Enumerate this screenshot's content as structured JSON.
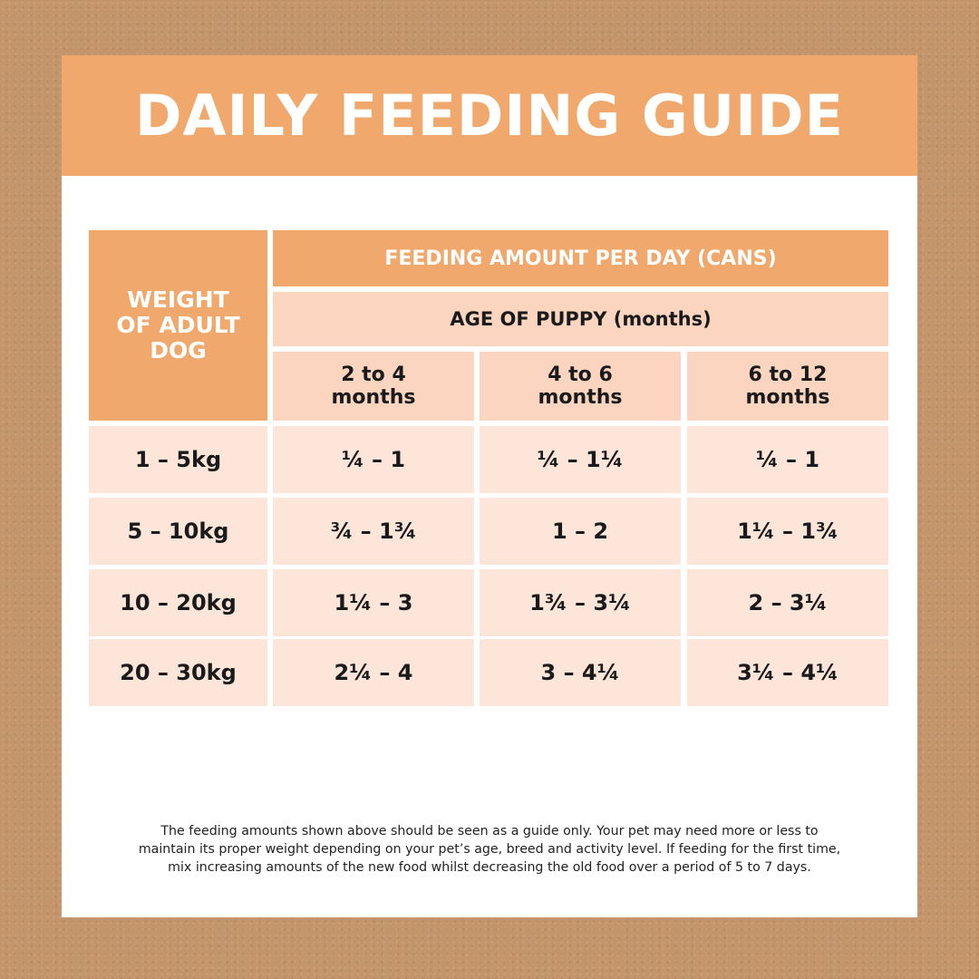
{
  "title": "DAILY FEEDING GUIDE",
  "table": {
    "weight_header": [
      "WEIGHT",
      "OF ADULT",
      "DOG"
    ],
    "feeding_header": "FEEDING AMOUNT PER DAY (CANS)",
    "age_header": "AGE OF PUPPY (months)",
    "age_columns": [
      [
        "2 to 4",
        "months"
      ],
      [
        "4 to 6",
        "months"
      ],
      [
        "6 to 12",
        "months"
      ]
    ],
    "rows": [
      {
        "weight": "1 – 5kg",
        "values": [
          "¼ – 1",
          "¼ – 1¼",
          "¼ – 1"
        ]
      },
      {
        "weight": "5 – 10kg",
        "values": [
          "¾ – 1¾",
          "1 – 2",
          "1¼ – 1¾"
        ]
      },
      {
        "weight": "10 – 20kg",
        "values": [
          "1¼ – 3",
          "1¾ – 3¼",
          "2 – 3¼"
        ]
      },
      {
        "weight": "20 – 30kg",
        "values": [
          "2¼ – 4",
          "3 – 4¼",
          "3¼ – 4¼"
        ]
      }
    ]
  },
  "footer": {
    "lines": [
      "The feeding amounts shown above should be seen as a guide only. Your pet may need more or less to",
      "maintain its proper weight depending on your pet’s age, breed and activity level. If feeding for the first time,",
      "mix increasing amounts of the new food whilst decreasing the old food over a period of 5 to 7 days."
    ]
  },
  "colors": {
    "background": "#c4946a",
    "header_orange": "#f0a86c",
    "cell_light": "#fbd5c0",
    "cell_pale": "#fde6d9"
  }
}
